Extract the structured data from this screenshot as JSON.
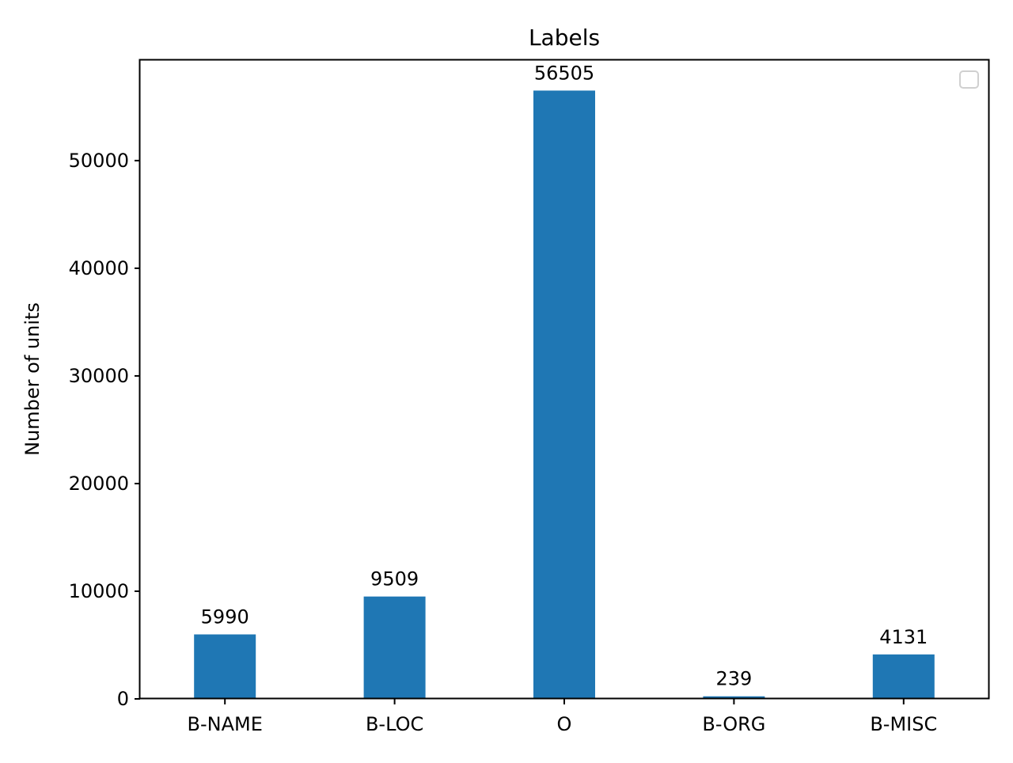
{
  "chart_data": {
    "type": "bar",
    "title": "Labels",
    "xlabel": "",
    "ylabel": "Number of units",
    "categories": [
      "B-NAME",
      "B-LOC",
      "O",
      "B-ORG",
      "B-MISC"
    ],
    "values": [
      5990,
      9509,
      56505,
      239,
      4131
    ],
    "data_labels": [
      "5990",
      "9509",
      "56505",
      "239",
      "4131"
    ],
    "ylim": [
      0,
      59330
    ],
    "yticks": [
      0,
      10000,
      20000,
      30000,
      40000,
      50000
    ],
    "ytick_labels": [
      "0",
      "10000",
      "20000",
      "30000",
      "40000",
      "50000"
    ],
    "bar_color": "#1f77b4",
    "grid": false,
    "legend": {
      "placement": "top-right",
      "entries": []
    }
  }
}
